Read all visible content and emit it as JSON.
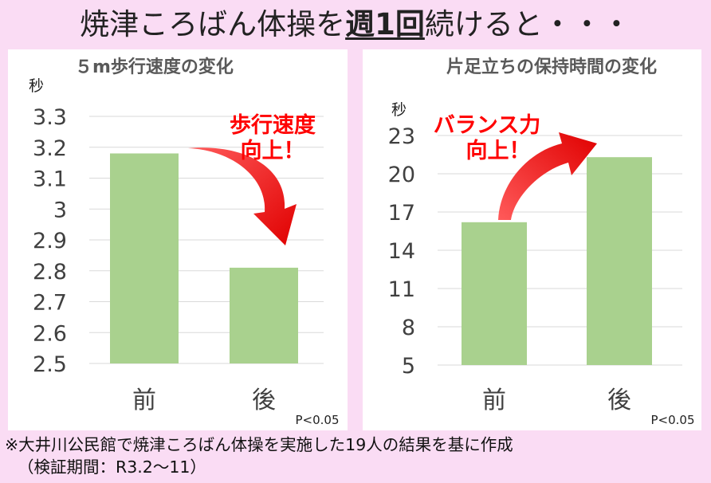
{
  "title": {
    "part1": "焼津ころばん体操を",
    "highlight": "週1回",
    "part2": "続けると・・・"
  },
  "chart_data": [
    {
      "type": "bar",
      "title": "５m歩行速度の変化",
      "ylabel": "秒",
      "categories": [
        "前",
        "後"
      ],
      "values": [
        3.18,
        2.81
      ],
      "ylim": [
        2.5,
        3.3
      ],
      "yticks": [
        3.3,
        3.2,
        3.1,
        3,
        2.9,
        2.8,
        2.7,
        2.6,
        2.5
      ],
      "ytick_labels": [
        "3.3",
        "3.2",
        "3.1",
        "3",
        "2.9",
        "2.8",
        "2.7",
        "2.6",
        "2.5"
      ],
      "grid": true,
      "bar_color": "#a9d18e",
      "annotation": {
        "line1": "歩行速度",
        "line2": "向上！",
        "color": "#ff0000"
      },
      "significance": "P<0.05"
    },
    {
      "type": "bar",
      "title": "片足立ちの保持時間の変化",
      "ylabel": "秒",
      "categories": [
        "前",
        "後"
      ],
      "values": [
        16.2,
        21.3
      ],
      "ylim": [
        5,
        23
      ],
      "yticks": [
        23,
        20,
        17,
        14,
        11,
        8,
        5
      ],
      "ytick_labels": [
        "23",
        "20",
        "17",
        "14",
        "11",
        "8",
        "5"
      ],
      "grid": true,
      "bar_color": "#a9d18e",
      "annotation": {
        "line1": "バランス力",
        "line2": "向上！",
        "color": "#ff0000"
      },
      "significance": "P<0.05"
    }
  ],
  "footnote": {
    "line1": "※大井川公民館で焼津ころばん体操を実施した19人の結果を基に作成",
    "line2": "（検証期間：R3.2～11）"
  }
}
